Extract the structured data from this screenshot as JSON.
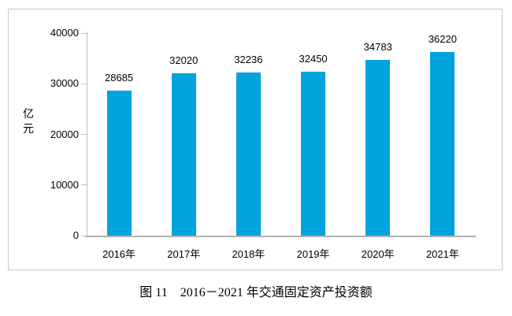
{
  "figure": {
    "caption": "图 11　2016－2021 年交通固定资产投资额"
  },
  "chart_data": {
    "type": "bar",
    "categories": [
      "2016年",
      "2017年",
      "2018年",
      "2019年",
      "2020年",
      "2021年"
    ],
    "values": [
      28685,
      32020,
      32236,
      32450,
      34783,
      36220
    ],
    "data_labels": [
      "28685",
      "32020",
      "32236",
      "32450",
      "34783",
      "36220"
    ],
    "title": "",
    "xlabel": "",
    "ylabel": "亿元",
    "ylim": [
      0,
      40000
    ],
    "y_ticks": [
      0,
      10000,
      20000,
      30000,
      40000
    ],
    "y_tick_labels": [
      "0",
      "10000",
      "20000",
      "30000",
      "40000"
    ],
    "grid": false,
    "legend": "none",
    "bar_color": "#00a3dc",
    "axis_color": "#bfbfbf",
    "frame_border_color": "#c9c9c9"
  }
}
